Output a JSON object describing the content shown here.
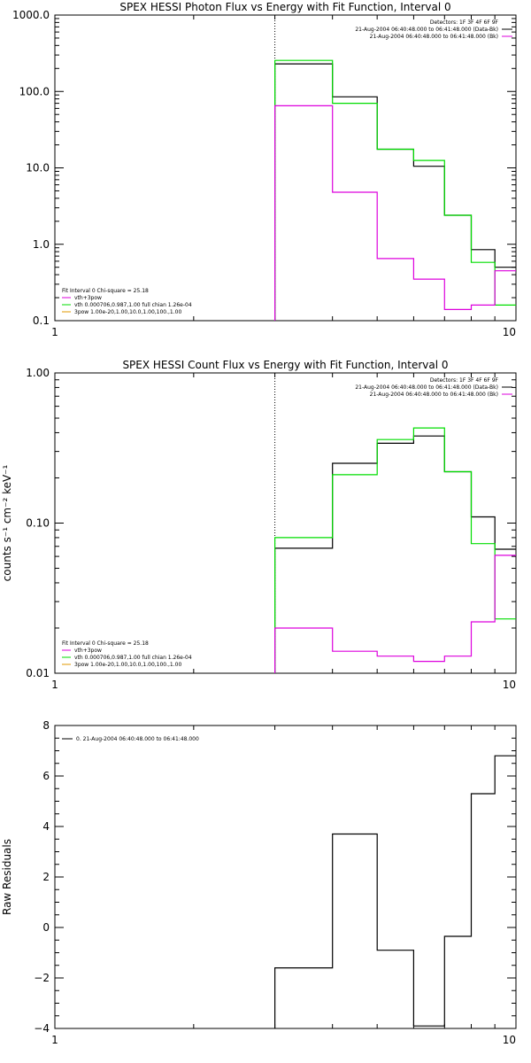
{
  "colors": {
    "data": "#000000",
    "total_fit": "#00dd00",
    "background": "#dd00dd",
    "component": "#e09a00",
    "frame": "#000000"
  },
  "chart_data": [
    {
      "type": "line",
      "id": "photon",
      "title": "SPEX HESSI Photon Flux vs Energy with Fit Function, Interval 0",
      "xlabel": "",
      "ylabel": "",
      "xscale": "log",
      "yscale": "log",
      "xlim": [
        1,
        10
      ],
      "ylim": [
        0.1,
        1000
      ],
      "x_ticks": [
        1,
        10
      ],
      "x_tick_labels": [
        "1",
        "10"
      ],
      "y_ticks": [
        0.1,
        1,
        10,
        100,
        1000
      ],
      "y_tick_labels": [
        "0.1",
        "1.0",
        "10.0",
        "100.0",
        "1000.0"
      ],
      "vline_x": 3.0,
      "bin_edges": [
        3.0,
        4.0,
        5.0,
        6.0,
        7.0,
        8.0,
        9.0,
        10.0
      ],
      "legend_top_right": [
        "Detectors: 1F 3F 4F 6F 9F",
        "21-Aug-2004 06:40:48.000 to 06:41:48.000 (Data-Bk)",
        "21-Aug-2004 06:40:48.000 to 06:41:48.000 (Bk)"
      ],
      "legend_bottom_left": [
        "Fit Interval 0   Chi-square = 25.18",
        "vth+3pow",
        "vth 0.000706,0.987,1.00  full chian 1.26e-04",
        "3pow 1.00e-20,1.00,10.0,1.00,100.,1.00"
      ],
      "series": [
        {
          "name": "21-Aug-2004 06:40:48.000 to 06:41:48.000 (Data-Bk)",
          "values": [
            230,
            85,
            17.5,
            10.5,
            2.4,
            0.85,
            0.5
          ]
        },
        {
          "name": "vth+3pow",
          "values": [
            255,
            70,
            17.5,
            12.5,
            2.4,
            0.58,
            0.16
          ]
        },
        {
          "name": "21-Aug-2004 06:40:48.000 to 06:41:48.000 (Bk)",
          "values": [
            65,
            4.8,
            0.65,
            0.35,
            0.14,
            0.16,
            0.45
          ]
        }
      ]
    },
    {
      "type": "line",
      "id": "count",
      "title": "SPEX HESSI Count Flux vs Energy with Fit Function, Interval 0",
      "xlabel": "",
      "ylabel": "counts s⁻¹ cm⁻² keV⁻¹",
      "xscale": "log",
      "yscale": "log",
      "xlim": [
        1,
        10
      ],
      "ylim": [
        0.01,
        1.0
      ],
      "x_ticks": [
        1,
        10
      ],
      "x_tick_labels": [
        "1",
        "10"
      ],
      "y_ticks": [
        0.01,
        0.1,
        1.0
      ],
      "y_tick_labels": [
        "0.01",
        "0.10",
        "1.00"
      ],
      "vline_x": 3.0,
      "bin_edges": [
        3.0,
        4.0,
        5.0,
        6.0,
        7.0,
        8.0,
        9.0,
        10.0
      ],
      "legend_top_right": [
        "Detectors: 1F 3F 4F 6F 9F",
        "21-Aug-2004 06:40:48.000 to 06:41:48.000 (Data-Bk)",
        "21-Aug-2004 06:40:48.000 to 06:41:48.000 (Bk)"
      ],
      "legend_bottom_left": [
        "Fit Interval 0   Chi-square = 25.18",
        "vth+3pow",
        "vth 0.000706,0.987,1.00  full chian 1.26e-04",
        "3pow 1.00e-20,1.00,10.0,1.00,100.,1.00"
      ],
      "series": [
        {
          "name": "21-Aug-2004 06:40:48.000 to 06:41:48.000 (Data-Bk)",
          "values": [
            0.068,
            0.25,
            0.34,
            0.38,
            0.22,
            0.11,
            0.067
          ]
        },
        {
          "name": "vth+3pow",
          "values": [
            0.08,
            0.21,
            0.36,
            0.43,
            0.22,
            0.073,
            0.023
          ]
        },
        {
          "name": "21-Aug-2004 06:40:48.000 to 06:41:48.000 (Bk)",
          "values": [
            0.02,
            0.014,
            0.013,
            0.012,
            0.013,
            0.022,
            0.061
          ]
        }
      ]
    },
    {
      "type": "line",
      "id": "residuals",
      "title": "",
      "xlabel": "",
      "ylabel": "Raw Residuals",
      "xscale": "log",
      "yscale": "linear",
      "xlim": [
        1,
        10
      ],
      "ylim": [
        -4,
        8
      ],
      "x_ticks": [
        1,
        10
      ],
      "x_tick_labels": [
        "1",
        "10"
      ],
      "y_ticks": [
        -4,
        -2,
        0,
        2,
        4,
        6,
        8
      ],
      "y_tick_labels": [
        "−4",
        "−2",
        "0",
        "2",
        "4",
        "6",
        "8"
      ],
      "bin_edges": [
        3.0,
        4.0,
        5.0,
        6.0,
        7.0,
        8.0,
        9.0,
        10.0
      ],
      "legend_top_left": [
        "0. 21-Aug-2004 06:40:48.000 to 06:41:48.000"
      ],
      "series": [
        {
          "name": "0. 21-Aug-2004 06:40:48.000 to 06:41:48.000",
          "values": [
            -1.6,
            3.7,
            -0.9,
            -3.9,
            -0.35,
            5.3,
            6.8
          ]
        }
      ]
    }
  ]
}
